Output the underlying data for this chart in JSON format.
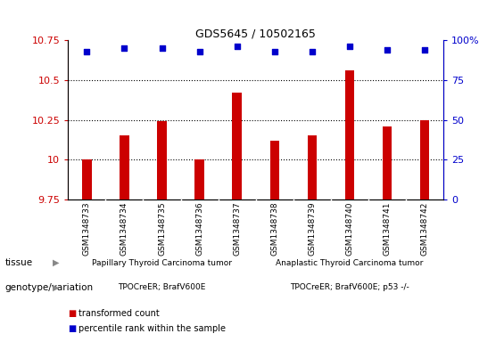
{
  "title": "GDS5645 / 10502165",
  "samples": [
    "GSM1348733",
    "GSM1348734",
    "GSM1348735",
    "GSM1348736",
    "GSM1348737",
    "GSM1348738",
    "GSM1348739",
    "GSM1348740",
    "GSM1348741",
    "GSM1348742"
  ],
  "transformed_count": [
    10.0,
    10.15,
    10.24,
    10.0,
    10.42,
    10.12,
    10.15,
    10.56,
    10.21,
    10.25
  ],
  "percentile_rank": [
    93,
    95,
    95,
    93,
    96,
    93,
    93,
    96,
    94,
    94
  ],
  "ylim_left": [
    9.75,
    10.75
  ],
  "ylim_right": [
    0,
    100
  ],
  "yticks_left": [
    9.75,
    10.0,
    10.25,
    10.5,
    10.75
  ],
  "ytick_labels_left": [
    "9.75",
    "10",
    "10.25",
    "10.5",
    "10.75"
  ],
  "yticks_right": [
    0,
    25,
    50,
    75,
    100
  ],
  "ytick_labels_right": [
    "0",
    "25",
    "50",
    "75",
    "100%"
  ],
  "bar_color": "#cc0000",
  "dot_color": "#0000cc",
  "bar_bottom": 9.75,
  "tissue_label1": "Papillary Thyroid Carcinoma tumor",
  "tissue_label2": "Anaplastic Thyroid Carcinoma tumor",
  "tissue_color": "#77dd77",
  "genotype_label1": "TPOCreER; BrafV600E",
  "genotype_label2": "TPOCreER; BrafV600E; p53 -/-",
  "genotype_color": "#ff99ff",
  "grid_color": "#000000",
  "background_color": "#ffffff",
  "label_color_left": "#cc0000",
  "label_color_right": "#0000cc",
  "legend_items": [
    "transformed count",
    "percentile rank within the sample"
  ],
  "legend_colors": [
    "#cc0000",
    "#0000cc"
  ],
  "tissue_row_label": "tissue",
  "genotype_row_label": "genotype/variation",
  "plot_bg": "#e8e8e8",
  "separator_color": "#ffffff"
}
